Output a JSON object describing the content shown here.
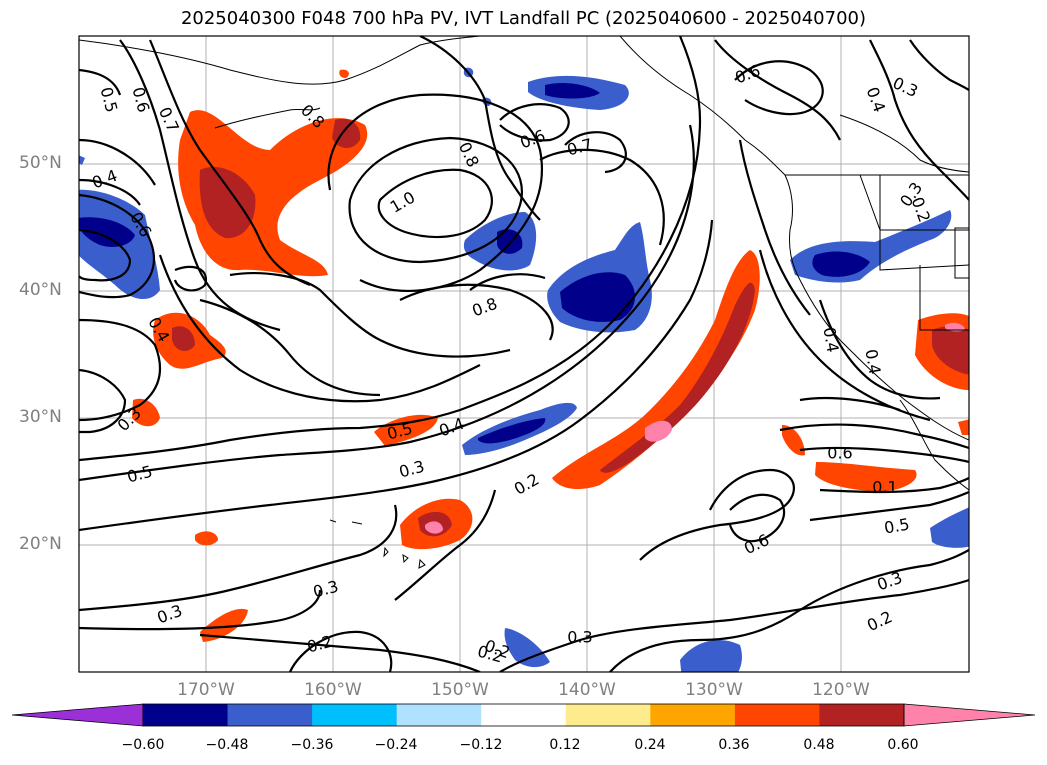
{
  "title": "2025040300 F048 700 hPa PV, IVT Landfall PC (2025040600 - 2025040700)",
  "lat_labels": [
    "50°N",
    "40°N",
    "30°N",
    "20°N"
  ],
  "lon_labels": [
    "170°W",
    "160°W",
    "150°W",
    "140°W",
    "130°W",
    "120°W"
  ],
  "contour_labels": [
    "0.5",
    "0.6",
    "0.7",
    "0.8",
    "0.4",
    "0.6",
    "1.0",
    "0.8",
    "0.6",
    "0.7",
    "0.6",
    "0.3",
    "0.4",
    "0.3",
    "0.8",
    "0.4",
    "0.4",
    "0.4",
    "0.2",
    "0.3",
    "0.5",
    "0.5",
    "0.4",
    "0.3",
    "0.2",
    "0.6",
    "0.1",
    "0.5",
    "0.6",
    "0.3",
    "0.3",
    "0.3",
    "0.2",
    "0.2",
    "0.2",
    "0.3",
    "0.2"
  ],
  "colorbar": {
    "ticks": [
      "−0.60",
      "−0.48",
      "−0.36",
      "−0.24",
      "−0.12",
      "0.12",
      "0.24",
      "0.36",
      "0.48",
      "0.60"
    ],
    "colors": [
      "#9b30d9",
      "#00008b",
      "#3a5fcd",
      "#00bfff",
      "#b0e2ff",
      "#ffffff",
      "#fdeb8e",
      "#ffa500",
      "#ff4500",
      "#b22222",
      "#ff82ab"
    ]
  }
}
